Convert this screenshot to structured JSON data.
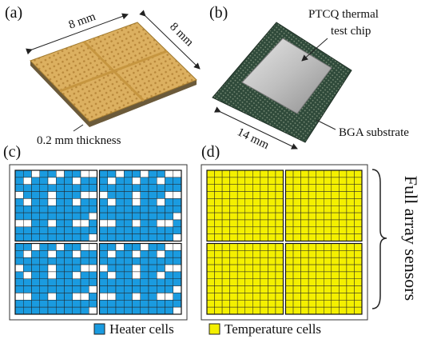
{
  "panels": {
    "a": {
      "label": "(a)",
      "dimensions": [
        "8 mm",
        "8 mm"
      ],
      "thickness": "0.2 mm thickness"
    },
    "b": {
      "label": "(b)",
      "chip": [
        "PTCQ thermal",
        "test chip"
      ],
      "size": "14 mm",
      "substrate": "BGA substrate"
    },
    "c": {
      "label": "(c)"
    },
    "d": {
      "label": "(d)",
      "bracket": "Full array sensors"
    }
  },
  "legend": [
    {
      "label": "Heater cells"
    },
    {
      "label": "Temperature cells"
    }
  ]
}
